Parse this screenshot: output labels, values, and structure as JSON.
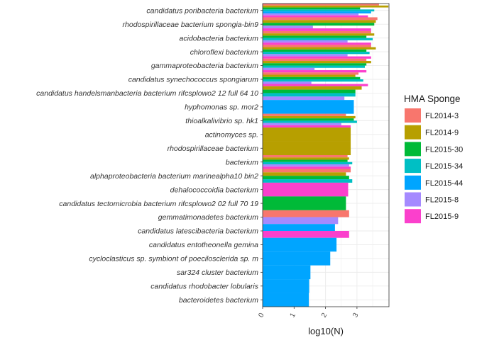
{
  "chart_data": {
    "type": "bar",
    "orientation": "horizontal",
    "xlabel": "log10(N)",
    "ylabel": "",
    "xlim": [
      0,
      4
    ],
    "xticks": [
      0,
      1,
      2,
      3
    ],
    "grid": true,
    "legend": {
      "title": "HMA Sponge",
      "placement": "right"
    },
    "series": [
      {
        "name": "FL2014-3",
        "color": "#F8766D"
      },
      {
        "name": "FL2014-9",
        "color": "#B79F00"
      },
      {
        "name": "FL2015-30",
        "color": "#00BA38"
      },
      {
        "name": "FL2015-34",
        "color": "#00BFC4"
      },
      {
        "name": "FL2015-44",
        "color": "#00A5FF"
      },
      {
        "name": "FL2015-8",
        "color": "#A58AFF"
      },
      {
        "name": "FL2015-9",
        "color": "#FB40CC"
      }
    ],
    "categories": [
      {
        "label": "candidatus poribacteria bacterium",
        "values": {
          "FL2014-3": 3.7,
          "FL2014-9": 4.0,
          "FL2015-30": 3.1,
          "FL2015-34": 3.55,
          "FL2015-44": 3.45,
          "FL2015-8": 3.05,
          "FL2015-9": 3.35
        }
      },
      {
        "label": "rhodospirillaceae bacterium spongia-bin9",
        "values": {
          "FL2014-3": 3.65,
          "FL2014-9": 3.6,
          "FL2015-30": 3.55,
          "FL2015-8": 1.6,
          "FL2015-9": 3.45
        }
      },
      {
        "label": "acidobacteria bacterium",
        "values": {
          "FL2014-3": 3.45,
          "FL2014-9": 3.55,
          "FL2015-30": 3.3,
          "FL2015-34": 3.5,
          "FL2015-8": 2.7,
          "FL2015-9": 3.45
        }
      },
      {
        "label": "chloroflexi bacterium",
        "values": {
          "FL2014-3": 3.45,
          "FL2014-9": 3.6,
          "FL2015-30": 3.3,
          "FL2015-34": 3.4,
          "FL2015-8": 2.7,
          "FL2015-9": 3.45
        }
      },
      {
        "label": "gammaproteobacteria bacterium",
        "values": {
          "FL2014-3": 3.3,
          "FL2014-9": 3.45,
          "FL2015-30": 3.3,
          "FL2015-34": 3.25,
          "FL2015-8": 1.65,
          "FL2015-9": 3.3
        }
      },
      {
        "label": "candidatus synechococcus spongiarum",
        "values": {
          "FL2014-3": 3.05,
          "FL2014-9": 2.95,
          "FL2015-30": 3.1,
          "FL2015-34": 3.2,
          "FL2015-8": 1.55,
          "FL2015-9": 3.35
        }
      },
      {
        "label": "candidatus handelsmanbacteria bacterium rifcsplowo2 12 full 64 10",
        "values": {
          "FL2014-9": 3.15,
          "FL2015-30": 2.95,
          "FL2015-34": 2.95,
          "FL2015-8": 2.6
        }
      },
      {
        "label": "hyphomonas sp. mor2",
        "values": {
          "FL2015-44": 2.9
        }
      },
      {
        "label": "thioalkalivibrio sp. hk1",
        "values": {
          "FL2014-3": 2.65,
          "FL2014-9": 2.95,
          "FL2015-30": 2.9,
          "FL2015-34": 3.0,
          "FL2015-8": 2.5,
          "FL2015-9": 2.8
        }
      },
      {
        "label": "actinomyces sp.",
        "values": {
          "FL2014-9": 2.8
        }
      },
      {
        "label": "rhodospirillaceae bacterium",
        "values": {
          "FL2014-9": 2.8
        }
      },
      {
        "label": "bacterium",
        "values": {
          "FL2014-3": 2.7,
          "FL2014-9": 2.75,
          "FL2015-30": 2.7,
          "FL2015-34": 2.85,
          "FL2015-8": 2.75,
          "FL2015-9": 2.8
        }
      },
      {
        "label": "alphaproteobacteria bacterium marinealpha10 bin2",
        "values": {
          "FL2014-3": 2.8,
          "FL2014-9": 2.65,
          "FL2015-30": 2.75,
          "FL2015-34": 2.85
        }
      },
      {
        "label": "dehalococcoidia bacterium",
        "values": {
          "FL2015-9": 2.72
        }
      },
      {
        "label": "candidatus tectomicrobia bacterium rifcsplowo2 02 full 70 19",
        "values": {
          "FL2015-30": 2.65
        }
      },
      {
        "label": "gemmatimonadetes bacterium",
        "values": {
          "FL2014-3": 2.75,
          "FL2015-8": 2.4
        }
      },
      {
        "label": "candidatus latescibacteria bacterium",
        "values": {
          "FL2015-44": 2.3,
          "FL2015-9": 2.75
        }
      },
      {
        "label": "candidatus entotheonella gemina",
        "values": {
          "FL2015-44": 2.35
        }
      },
      {
        "label": "cycloclasticus sp. symbiont of poecilosclerida sp. m",
        "values": {
          "FL2015-44": 2.15
        }
      },
      {
        "label": "sar324 cluster bacterium",
        "values": {
          "FL2015-44": 1.52
        }
      },
      {
        "label": "candidatus rhodobacter lobularis",
        "values": {
          "FL2015-44": 1.48
        }
      },
      {
        "label": "bacteroidetes bacterium",
        "values": {
          "FL2015-44": 1.47
        }
      }
    ]
  }
}
